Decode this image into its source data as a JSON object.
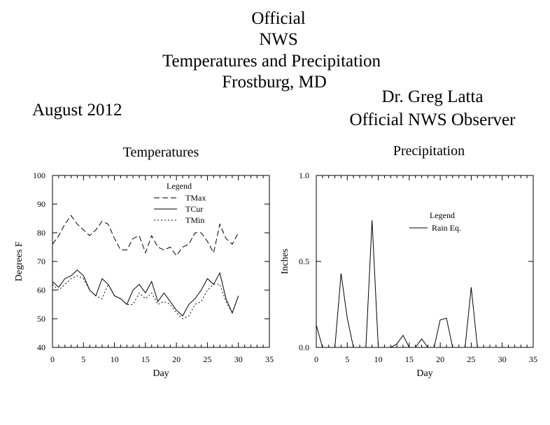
{
  "header": {
    "title_lines": [
      "Official",
      "NWS",
      "Temperatures and Precipitation",
      "Frostburg, MD"
    ],
    "month": "August 2012",
    "observer_name": "Dr. Greg Latta",
    "observer_title": "Official NWS Observer"
  },
  "chart_data": [
    {
      "type": "line",
      "title": "Temperatures",
      "xlabel": "Day",
      "ylabel": "Degrees F",
      "xlim": [
        0,
        35
      ],
      "ylim": [
        40,
        100
      ],
      "xticks": [
        0,
        5,
        10,
        15,
        20,
        25,
        30,
        35
      ],
      "yticks": [
        40,
        50,
        60,
        70,
        80,
        90,
        100
      ],
      "grid": false,
      "legend_title": "Legend",
      "legend_position": "top-center",
      "series": [
        {
          "name": "TMax",
          "style": "dashed",
          "x": [
            0,
            1,
            2,
            3,
            4,
            5,
            6,
            7,
            8,
            9,
            10,
            11,
            12,
            13,
            14,
            15,
            16,
            17,
            18,
            19,
            20,
            21,
            22,
            23,
            24,
            25,
            26,
            27,
            28,
            29,
            30
          ],
          "values": [
            76,
            79,
            83,
            86,
            83,
            81,
            79,
            81,
            84,
            83,
            78,
            74,
            74,
            78,
            79,
            73,
            79,
            75,
            74,
            75,
            72,
            75,
            76,
            80,
            80,
            77,
            73,
            83,
            78,
            76,
            80
          ]
        },
        {
          "name": "TCur",
          "style": "solid",
          "x": [
            0,
            1,
            2,
            3,
            4,
            5,
            6,
            7,
            8,
            9,
            10,
            11,
            12,
            13,
            14,
            15,
            16,
            17,
            18,
            19,
            20,
            21,
            22,
            23,
            24,
            25,
            26,
            27,
            28,
            29,
            30
          ],
          "values": [
            63,
            61,
            64,
            65,
            67,
            65,
            60,
            58,
            64,
            62,
            58,
            57,
            55,
            60,
            62,
            59,
            63,
            56,
            59,
            56,
            53,
            51,
            55,
            57,
            60,
            64,
            62,
            66,
            57,
            52,
            58
          ]
        },
        {
          "name": "TMin",
          "style": "dotted",
          "x": [
            0,
            1,
            2,
            3,
            4,
            5,
            6,
            7,
            8,
            9,
            10,
            11,
            12,
            13,
            14,
            15,
            16,
            17,
            18,
            19,
            20,
            21,
            22,
            23,
            24,
            25,
            26,
            27,
            28,
            29,
            30
          ],
          "values": [
            62,
            60,
            62,
            64,
            65,
            64,
            60,
            58,
            57,
            62,
            58,
            57,
            55,
            55,
            59,
            57,
            59,
            55,
            56,
            55,
            52,
            50,
            51,
            55,
            56,
            60,
            62,
            62,
            56,
            52,
            58
          ]
        }
      ]
    },
    {
      "type": "line",
      "title": "Precipitation",
      "xlabel": "Day",
      "ylabel": "Inches",
      "xlim": [
        0,
        35
      ],
      "ylim": [
        0,
        1
      ],
      "xticks": [
        0,
        5,
        10,
        15,
        20,
        25,
        30,
        35
      ],
      "yticks": [
        0,
        0.5,
        1
      ],
      "ytick_labels": [
        "0.0",
        "0.5",
        "1.0"
      ],
      "grid": false,
      "legend_title": "Legend",
      "legend_position": "center",
      "series": [
        {
          "name": "Rain Eq.",
          "style": "solid",
          "x": [
            0,
            1,
            2,
            3,
            4,
            5,
            6,
            7,
            8,
            9,
            10,
            11,
            12,
            13,
            14,
            15,
            16,
            17,
            18,
            19,
            20,
            21,
            22,
            23,
            24,
            25,
            26,
            27,
            28,
            29,
            30
          ],
          "values": [
            0.13,
            0,
            0,
            0,
            0.43,
            0.17,
            0,
            0,
            0,
            0.74,
            0,
            0,
            0,
            0.02,
            0.07,
            0,
            0,
            0.05,
            0,
            0,
            0.16,
            0.17,
            0,
            0,
            0,
            0.35,
            0,
            0,
            0,
            0,
            0
          ]
        }
      ]
    }
  ]
}
